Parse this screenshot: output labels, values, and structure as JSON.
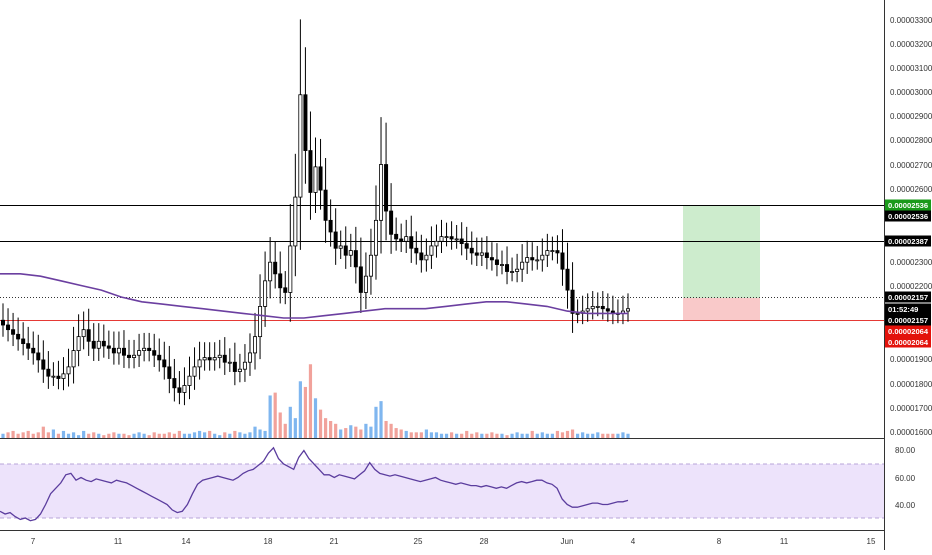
{
  "colors": {
    "candle": "#000000",
    "vol_up": "#7fb6ef",
    "vol_down": "#f1a29b",
    "ma_line": "#6b3fa0",
    "rsi_line": "#5b3d9e",
    "rsi_band": "#ede3fb",
    "level_line": "#000000",
    "support_line": "#e53935",
    "target_zone": "#cdeccd",
    "stop_zone": "#f9c9c9",
    "price_tag_black": "#000000",
    "price_tag_green": "#1a9a1a",
    "price_tag_red": "#e3120b",
    "grid_text": "#333333"
  },
  "price_axis": {
    "labels": [
      "0.00003300",
      "0.00003200",
      "0.00003100",
      "0.00003000",
      "0.00002900",
      "0.00002800",
      "0.00002700",
      "0.00002600",
      "0.00002300",
      "0.00002200",
      "0.00001900",
      "0.00001800",
      "0.00001700",
      "0.00001600"
    ]
  },
  "price_tags": [
    {
      "name": "price-tag-target",
      "text": "0.00002536",
      "style": "green"
    },
    {
      "name": "price-tag-level-top",
      "text": "0.00002536",
      "style": "black"
    },
    {
      "name": "price-tag-level-mid",
      "text": "0.00002387",
      "style": "black"
    },
    {
      "name": "price-tag-last",
      "text": "0.00002157",
      "style": "black"
    },
    {
      "name": "price-tag-countdown",
      "text": "01:52:49",
      "style": "black"
    },
    {
      "name": "price-tag-ma",
      "text": "0.00002157",
      "style": "black"
    },
    {
      "name": "price-tag-stop",
      "text": "0.00002064",
      "style": "red"
    },
    {
      "name": "price-tag-stop-2",
      "text": "0.00002064",
      "style": "red"
    }
  ],
  "rsi_axis": {
    "labels": [
      "80.00",
      "60.00",
      "40.00"
    ]
  },
  "time_axis": {
    "labels": [
      "7",
      "11",
      "14",
      "18",
      "21",
      "25",
      "28",
      "Jun",
      "4",
      "8",
      "11",
      "15"
    ]
  },
  "chart_data": {
    "type": "candlestick",
    "ylim": [
      1.59e-05,
      3.37e-05
    ],
    "levels": [
      2.536e-05,
      2.387e-05,
      2.064e-05
    ],
    "last_price": 2.157e-05,
    "closes": [
      2.05e-05,
      2.03e-05,
      2.01e-05,
      1.99e-05,
      1.97e-05,
      1.95e-05,
      1.93e-05,
      1.9e-05,
      1.86e-05,
      1.83e-05,
      1.83e-05,
      1.82e-05,
      1.84e-05,
      1.87e-05,
      1.94e-05,
      2e-05,
      2.03e-05,
      1.98e-05,
      1.95e-05,
      1.98e-05,
      1.96e-05,
      1.95e-05,
      1.93e-05,
      1.95e-05,
      1.92e-05,
      1.91e-05,
      1.92e-05,
      1.94e-05,
      1.95e-05,
      1.94e-05,
      1.92e-05,
      1.9e-05,
      1.87e-05,
      1.82e-05,
      1.78e-05,
      1.76e-05,
      1.79e-05,
      1.83e-05,
      1.87e-05,
      1.9e-05,
      1.91e-05,
      1.9e-05,
      1.91e-05,
      1.92e-05,
      1.89e-05,
      1.89e-05,
      1.85e-05,
      1.86e-05,
      1.89e-05,
      1.93e-05,
      2e-05,
      2.13e-05,
      2.24e-05,
      2.32e-05,
      2.27e-05,
      2.21e-05,
      2.19e-05,
      2.39e-05,
      2.6e-05,
      3.04e-05,
      2.8e-05,
      2.62e-05,
      2.73e-05,
      2.63e-05,
      2.5e-05,
      2.45e-05,
      2.38e-05,
      2.39e-05,
      2.35e-05,
      2.37e-05,
      2.3e-05,
      2.19e-05,
      2.26e-05,
      2.35e-05,
      2.5e-05,
      2.74e-05,
      2.54e-05,
      2.44e-05,
      2.42e-05,
      2.41e-05,
      2.43e-05,
      2.38e-05,
      2.36e-05,
      2.33e-05,
      2.35e-05,
      2.39e-05,
      2.41e-05,
      2.43e-05,
      2.43e-05,
      2.42e-05,
      2.42e-05,
      2.4e-05,
      2.38e-05,
      2.36e-05,
      2.35e-05,
      2.36e-05,
      2.34e-05,
      2.33e-05,
      2.31e-05,
      2.31e-05,
      2.28e-05,
      2.28e-05,
      2.29e-05,
      2.32e-05,
      2.34e-05,
      2.33e-05,
      2.33e-05,
      2.35e-05,
      2.37e-05,
      2.37e-05,
      2.36e-05,
      2.29e-05,
      2.2e-05,
      2.1e-05,
      2.1e-05,
      2.11e-05,
      2.12e-05,
      2.13e-05,
      2.13e-05,
      2.12e-05,
      2.11e-05,
      2.1e-05,
      2.1e-05,
      2.11e-05,
      2.12e-05
    ],
    "ma": [
      2.27e-05,
      2.27e-05,
      2.26e-05,
      2.24e-05,
      2.22e-05,
      2.2e-05,
      2.17e-05,
      2.15e-05,
      2.14e-05,
      2.13e-05,
      2.12e-05,
      2.11e-05,
      2.1e-05,
      2.09e-05,
      2.08e-05,
      2.08e-05,
      2.09e-05,
      2.1e-05,
      2.11e-05,
      2.12e-05,
      2.12e-05,
      2.12e-05,
      2.13e-05,
      2.14e-05,
      2.15e-05,
      2.15e-05,
      2.14e-05,
      2.13e-05,
      2.11e-05,
      2.1e-05,
      2.1e-05,
      2.1e-05
    ],
    "volume": [
      3,
      4,
      5,
      3,
      4,
      5,
      3,
      4,
      8,
      4,
      6,
      3,
      5,
      3,
      4,
      2,
      5,
      3,
      4,
      3,
      2,
      3,
      4,
      3,
      3,
      2,
      3,
      4,
      3,
      2,
      4,
      3,
      3,
      4,
      3,
      5,
      3,
      3,
      4,
      5,
      4,
      5,
      3,
      2,
      4,
      3,
      5,
      4,
      3,
      4,
      8,
      6,
      5,
      30,
      32,
      18,
      10,
      22,
      14,
      40,
      36,
      52,
      28,
      20,
      14,
      12,
      10,
      6,
      7,
      9,
      8,
      6,
      10,
      8,
      22,
      26,
      12,
      10,
      7,
      6,
      5,
      4,
      4,
      4,
      6,
      4,
      4,
      3,
      3,
      4,
      3,
      3,
      5,
      3,
      4,
      3,
      3,
      4,
      3,
      3,
      2,
      3,
      4,
      3,
      3,
      5,
      3,
      4,
      3,
      3,
      5,
      4,
      5,
      6,
      3,
      4,
      3,
      3,
      4,
      3,
      3,
      3,
      3,
      4,
      3
    ],
    "rsi": [
      35,
      33,
      34,
      31,
      29,
      30,
      28,
      29,
      33,
      40,
      48,
      52,
      56,
      62,
      63,
      58,
      60,
      58,
      57,
      59,
      58,
      57,
      56,
      58,
      57,
      56,
      54,
      52,
      50,
      48,
      46,
      44,
      42,
      40,
      36,
      34,
      35,
      40,
      48,
      55,
      58,
      59,
      60,
      61,
      60,
      59,
      58,
      60,
      63,
      65,
      66,
      69,
      72,
      78,
      82,
      74,
      70,
      68,
      66,
      75,
      80,
      74,
      70,
      66,
      62,
      62,
      60,
      62,
      61,
      60,
      59,
      62,
      65,
      71,
      66,
      63,
      62,
      61,
      62,
      61,
      60,
      59,
      58,
      57,
      58,
      59,
      60,
      58,
      57,
      56,
      55,
      56,
      55,
      54,
      54,
      53,
      54,
      53,
      52,
      53,
      52,
      54,
      56,
      57,
      56,
      57,
      58,
      58,
      56,
      55,
      52,
      44,
      40,
      38,
      38,
      39,
      40,
      41,
      41,
      40,
      40,
      41,
      42,
      42,
      43
    ]
  }
}
